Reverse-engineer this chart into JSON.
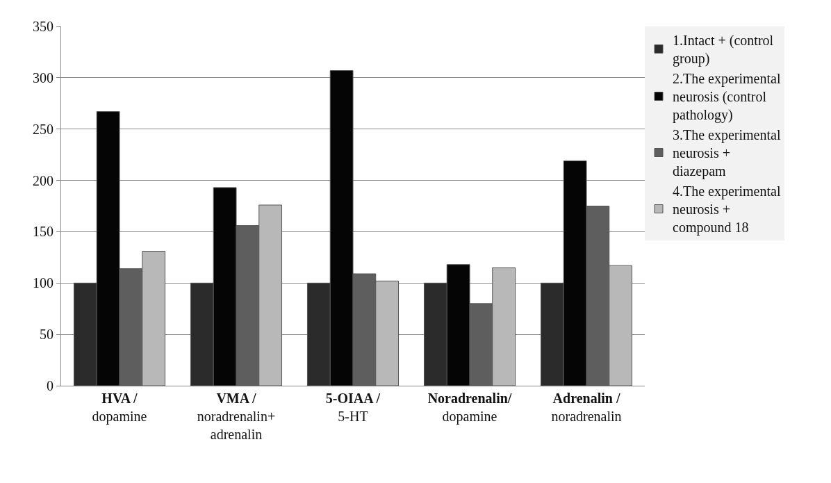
{
  "chart_data": {
    "type": "bar",
    "categories": [
      "HVA /\ndopamine",
      "VMA /\nnoradrenalin+\nadrenalin",
      "5-OIAA /\n5-HT",
      "Noradrenalin/\ndopamine",
      "Adrenalin /\nnoradrenalin"
    ],
    "series": [
      {
        "name": "1.Intact + (control\ngroup)",
        "color": "#2b2b2b",
        "values": [
          100,
          100,
          100,
          100,
          100
        ]
      },
      {
        "name": "2.The experimental\nneurosis (control\npathology)",
        "color": "#050505",
        "values": [
          267,
          193,
          307,
          118,
          219
        ]
      },
      {
        "name": "3.The experimental\nneurosis +\ndiazepam",
        "color": "#5e5e5e",
        "values": [
          114,
          156,
          109,
          80,
          175
        ]
      },
      {
        "name": "4.The experimental\nneurosis +\ncompound 18",
        "color": "#b8b8b8",
        "values": [
          131,
          176,
          102,
          115,
          117
        ]
      }
    ],
    "ylim": [
      0,
      350
    ],
    "yticks": [
      0,
      50,
      100,
      150,
      200,
      250,
      300,
      350
    ],
    "grid": "y",
    "legend": "right"
  }
}
